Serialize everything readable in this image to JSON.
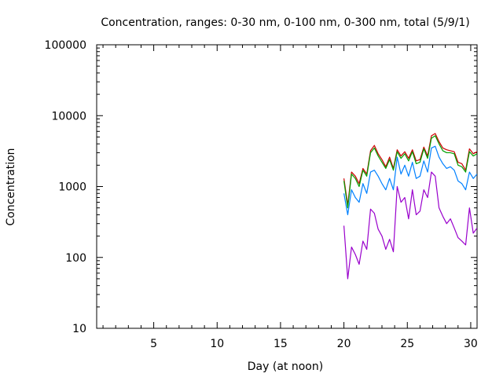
{
  "chart_data": {
    "type": "line",
    "title": "Concentration, ranges: 0-30 nm, 0-100 nm, 0-300 nm, total (5/9/1)",
    "xlabel": "Day (at noon)",
    "ylabel": "Concentration",
    "xlim": [
      0.5,
      30.5
    ],
    "ylim": [
      10,
      100000
    ],
    "yscale": "log",
    "grid": false,
    "legend": "none",
    "x_ticks": [
      5,
      10,
      15,
      20,
      25,
      30
    ],
    "x_tick_labels": [
      "5",
      "10",
      "15",
      "20",
      "25",
      "30"
    ],
    "y_ticks": [
      10,
      100,
      1000,
      10000,
      100000
    ],
    "y_tick_labels": [
      "10",
      "100",
      "1000",
      "10000",
      "100000"
    ],
    "series": [
      {
        "color": "#cc0000",
        "x": [
          20.0,
          20.3,
          20.6,
          20.9,
          21.2,
          21.5,
          21.8,
          22.1,
          22.4,
          22.7,
          23.0,
          23.3,
          23.6,
          23.9,
          24.2,
          24.5,
          24.8,
          25.1,
          25.4,
          25.7,
          26.0,
          26.3,
          26.6,
          26.9,
          27.2,
          27.5,
          27.8,
          28.1,
          28.4,
          28.7,
          29.0,
          29.3,
          29.6,
          29.9,
          30.2,
          30.5
        ],
        "y": [
          1300,
          550,
          1600,
          1400,
          1100,
          1800,
          1500,
          3200,
          3800,
          2900,
          2400,
          1900,
          2600,
          1800,
          3300,
          2700,
          3100,
          2500,
          3300,
          2300,
          2400,
          3600,
          2700,
          5200,
          5600,
          4300,
          3500,
          3300,
          3200,
          3100,
          2200,
          2100,
          1700,
          3400,
          2900,
          3100
        ]
      },
      {
        "color": "#00a000",
        "x": [
          20.0,
          20.3,
          20.6,
          20.9,
          21.2,
          21.5,
          21.8,
          22.1,
          22.4,
          22.7,
          23.0,
          23.3,
          23.6,
          23.9,
          24.2,
          24.5,
          24.8,
          25.1,
          25.4,
          25.7,
          26.0,
          26.3,
          26.6,
          26.9,
          27.2,
          27.5,
          27.8,
          28.1,
          28.4,
          28.7,
          29.0,
          29.3,
          29.6,
          29.9,
          30.2,
          30.5
        ],
        "y": [
          1200,
          500,
          1500,
          1300,
          1000,
          1700,
          1400,
          3000,
          3500,
          2700,
          2200,
          1800,
          2400,
          1700,
          3100,
          2500,
          2900,
          2300,
          3100,
          2100,
          2200,
          3400,
          2500,
          4800,
          5200,
          4000,
          3200,
          3000,
          3000,
          2900,
          2000,
          1900,
          1600,
          3100,
          2700,
          2900
        ]
      },
      {
        "color": "#0080ff",
        "x": [
          20.0,
          20.3,
          20.6,
          20.9,
          21.2,
          21.5,
          21.8,
          22.1,
          22.4,
          22.7,
          23.0,
          23.3,
          23.6,
          23.9,
          24.2,
          24.5,
          24.8,
          25.1,
          25.4,
          25.7,
          26.0,
          26.3,
          26.6,
          26.9,
          27.2,
          27.5,
          27.8,
          28.1,
          28.4,
          28.7,
          29.0,
          29.3,
          29.6,
          29.9,
          30.2,
          30.5
        ],
        "y": [
          800,
          400,
          900,
          700,
          600,
          1100,
          800,
          1600,
          1700,
          1400,
          1100,
          900,
          1300,
          900,
          2600,
          1500,
          2000,
          1400,
          2200,
          1300,
          1400,
          2300,
          1600,
          3500,
          3700,
          2600,
          2100,
          1800,
          1900,
          1700,
          1200,
          1100,
          900,
          1600,
          1300,
          1500
        ]
      },
      {
        "color": "#9900cc",
        "x": [
          20.0,
          20.3,
          20.6,
          20.9,
          21.2,
          21.5,
          21.8,
          22.1,
          22.4,
          22.7,
          23.0,
          23.3,
          23.6,
          23.9,
          24.2,
          24.5,
          24.8,
          25.1,
          25.4,
          25.7,
          26.0,
          26.3,
          26.6,
          26.9,
          27.2,
          27.5,
          27.8,
          28.1,
          28.4,
          28.7,
          29.0,
          29.3,
          29.6,
          29.9,
          30.2,
          30.5
        ],
        "y": [
          280,
          50,
          140,
          110,
          80,
          170,
          130,
          480,
          420,
          250,
          200,
          130,
          180,
          120,
          1000,
          600,
          700,
          350,
          900,
          400,
          450,
          900,
          700,
          1600,
          1400,
          500,
          380,
          300,
          350,
          260,
          190,
          170,
          150,
          500,
          220,
          260
        ]
      }
    ]
  }
}
